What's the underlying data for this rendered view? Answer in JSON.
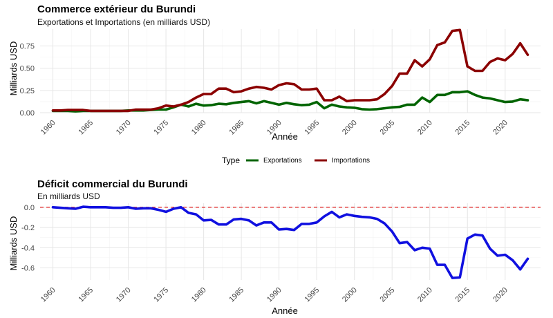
{
  "chart_data": [
    {
      "type": "line",
      "title": "Commerce extérieur du Burundi",
      "subtitle": "Exportations et Importations (en milliards USD)",
      "xlabel": "Année",
      "ylabel": "Milliards USD",
      "xlim": [
        1960,
        2023
      ],
      "ylim": [
        0,
        0.94
      ],
      "x_ticks": [
        1960,
        1965,
        1970,
        1975,
        1980,
        1985,
        1990,
        1995,
        2000,
        2005,
        2010,
        2015,
        2020
      ],
      "y_ticks": [
        0.0,
        0.25,
        0.5,
        0.75
      ],
      "y_tick_labels": [
        "0.00",
        "0.25",
        "0.50",
        "0.75"
      ],
      "grid": true,
      "legend": {
        "title": "Type",
        "placement": "bottom",
        "entries": [
          "Exportations",
          "Importations"
        ]
      },
      "x": [
        1960,
        1961,
        1962,
        1963,
        1964,
        1965,
        1966,
        1967,
        1968,
        1969,
        1970,
        1971,
        1972,
        1973,
        1974,
        1975,
        1976,
        1977,
        1978,
        1979,
        1980,
        1981,
        1982,
        1983,
        1984,
        1985,
        1986,
        1987,
        1988,
        1989,
        1990,
        1991,
        1992,
        1993,
        1994,
        1995,
        1996,
        1997,
        1998,
        1999,
        2000,
        2001,
        2002,
        2003,
        2004,
        2005,
        2006,
        2007,
        2008,
        2009,
        2010,
        2011,
        2012,
        2013,
        2014,
        2015,
        2016,
        2017,
        2018,
        2019,
        2020,
        2021,
        2022,
        2023
      ],
      "series": [
        {
          "name": "Exportations",
          "color": "#006400",
          "values": [
            0.02,
            0.02,
            0.02,
            0.015,
            0.02,
            0.02,
            0.02,
            0.02,
            0.02,
            0.02,
            0.025,
            0.025,
            0.025,
            0.03,
            0.035,
            0.035,
            0.06,
            0.09,
            0.07,
            0.1,
            0.08,
            0.085,
            0.1,
            0.095,
            0.11,
            0.12,
            0.13,
            0.105,
            0.13,
            0.11,
            0.09,
            0.11,
            0.095,
            0.085,
            0.09,
            0.12,
            0.05,
            0.09,
            0.07,
            0.06,
            0.055,
            0.04,
            0.035,
            0.04,
            0.05,
            0.06,
            0.065,
            0.09,
            0.09,
            0.17,
            0.12,
            0.2,
            0.2,
            0.23,
            0.23,
            0.24,
            0.2,
            0.17,
            0.16,
            0.14,
            0.12,
            0.125,
            0.15,
            0.14
          ]
        },
        {
          "name": "Importations",
          "color": "#8b0000",
          "values": [
            0.025,
            0.025,
            0.03,
            0.03,
            0.03,
            0.02,
            0.02,
            0.02,
            0.02,
            0.02,
            0.02,
            0.035,
            0.035,
            0.035,
            0.05,
            0.08,
            0.07,
            0.09,
            0.12,
            0.17,
            0.21,
            0.21,
            0.27,
            0.27,
            0.23,
            0.24,
            0.27,
            0.29,
            0.28,
            0.26,
            0.31,
            0.33,
            0.32,
            0.26,
            0.26,
            0.27,
            0.14,
            0.14,
            0.18,
            0.13,
            0.14,
            0.14,
            0.14,
            0.15,
            0.21,
            0.3,
            0.44,
            0.44,
            0.59,
            0.52,
            0.6,
            0.76,
            0.79,
            0.92,
            0.93,
            0.52,
            0.47,
            0.47,
            0.57,
            0.61,
            0.59,
            0.66,
            0.78,
            0.65
          ]
        }
      ]
    },
    {
      "type": "line",
      "title": "Déficit commercial du Burundi",
      "subtitle": "En milliards USD",
      "xlabel": "Année",
      "ylabel": "Milliards USD",
      "xlim": [
        1960,
        2023
      ],
      "ylim": [
        -0.72,
        0.04
      ],
      "x_ticks": [
        1960,
        1965,
        1970,
        1975,
        1980,
        1985,
        1990,
        1995,
        2000,
        2005,
        2010,
        2015,
        2020
      ],
      "y_ticks": [
        0.0,
        -0.2,
        -0.4,
        -0.6
      ],
      "y_tick_labels": [
        "0.0",
        "-0.2",
        "-0.4",
        "-0.6"
      ],
      "grid": true,
      "reference_line": {
        "y": 0,
        "color": "#e03030",
        "style": "dashed"
      },
      "x": [
        1960,
        1961,
        1962,
        1963,
        1964,
        1965,
        1966,
        1967,
        1968,
        1969,
        1970,
        1971,
        1972,
        1973,
        1974,
        1975,
        1976,
        1977,
        1978,
        1979,
        1980,
        1981,
        1982,
        1983,
        1984,
        1985,
        1986,
        1987,
        1988,
        1989,
        1990,
        1991,
        1992,
        1993,
        1994,
        1995,
        1996,
        1997,
        1998,
        1999,
        2000,
        2001,
        2002,
        2003,
        2004,
        2005,
        2006,
        2007,
        2008,
        2009,
        2010,
        2011,
        2012,
        2013,
        2014,
        2015,
        2016,
        2017,
        2018,
        2019,
        2020,
        2021,
        2022,
        2023
      ],
      "series": [
        {
          "name": "Déficit",
          "color": "#1010e0",
          "values": [
            0.0,
            -0.005,
            -0.01,
            -0.015,
            0.005,
            0.0,
            0.0,
            0.0,
            -0.005,
            -0.005,
            0.0,
            -0.015,
            -0.01,
            -0.01,
            -0.025,
            -0.045,
            -0.015,
            0.0,
            -0.055,
            -0.07,
            -0.13,
            -0.125,
            -0.17,
            -0.17,
            -0.12,
            -0.115,
            -0.13,
            -0.18,
            -0.15,
            -0.15,
            -0.22,
            -0.215,
            -0.225,
            -0.165,
            -0.165,
            -0.15,
            -0.09,
            -0.045,
            -0.1,
            -0.07,
            -0.085,
            -0.095,
            -0.1,
            -0.115,
            -0.16,
            -0.24,
            -0.355,
            -0.345,
            -0.425,
            -0.4,
            -0.41,
            -0.57,
            -0.57,
            -0.7,
            -0.695,
            -0.31,
            -0.27,
            -0.28,
            -0.41,
            -0.48,
            -0.47,
            -0.525,
            -0.615,
            -0.51
          ]
        }
      ]
    }
  ]
}
